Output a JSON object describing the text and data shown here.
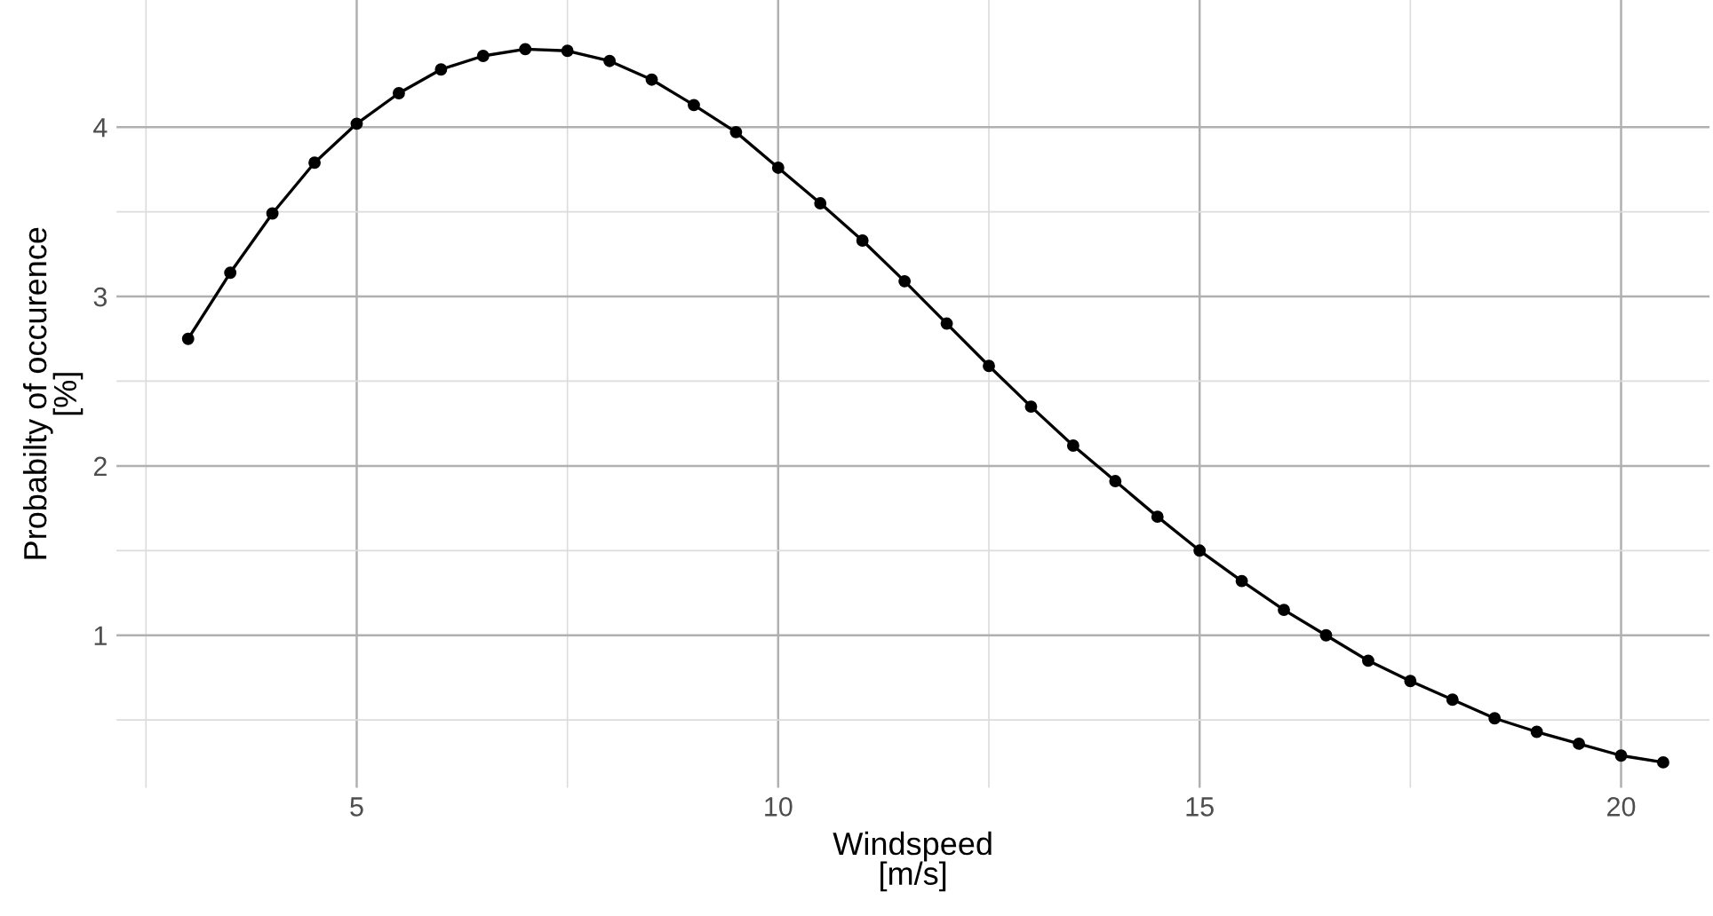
{
  "chart_data": {
    "type": "line",
    "xlabel": "Windspeed\n[m/s]",
    "ylabel": "Probabilty of occurence\n[%]",
    "x": [
      3,
      3.5,
      4,
      4.5,
      5,
      5.5,
      6,
      6.5,
      7,
      7.5,
      8,
      8.5,
      9,
      9.5,
      10,
      10.5,
      11,
      11.5,
      12,
      12.5,
      13,
      13.5,
      14,
      14.5,
      15,
      15.5,
      16,
      16.5,
      17,
      17.5,
      18,
      18.5,
      19,
      19.5,
      20,
      20.5
    ],
    "series": [
      {
        "color": "#000000",
        "values": [
          2.75,
          3.14,
          3.49,
          3.79,
          4.02,
          4.2,
          4.34,
          4.42,
          4.46,
          4.45,
          4.39,
          4.28,
          4.13,
          3.97,
          3.76,
          3.55,
          3.33,
          3.09,
          2.84,
          2.59,
          2.35,
          2.12,
          1.91,
          1.7,
          1.5,
          1.32,
          1.15,
          1.0,
          0.85,
          0.73,
          0.62,
          0.51,
          0.43,
          0.36,
          0.29,
          0.25
        ]
      }
    ],
    "xlim": [
      2.15,
      21.05
    ],
    "ylim": [
      0.1,
      4.75
    ],
    "xticks": [
      {
        "value": 2.5,
        "label": null
      },
      5,
      {
        "value": 7.5,
        "label": null
      },
      10,
      {
        "value": 12.5,
        "label": null
      },
      15,
      {
        "value": 17.5,
        "label": null
      },
      20
    ],
    "yticks": [
      {
        "value": 0.5,
        "label": null
      },
      1,
      {
        "value": 1.5,
        "label": null
      },
      2,
      {
        "value": 2.5,
        "label": null
      },
      3,
      {
        "value": 3.5,
        "label": null
      },
      4
    ],
    "grid": true,
    "marker": "circle",
    "line_style": "solid",
    "legend": false
  }
}
